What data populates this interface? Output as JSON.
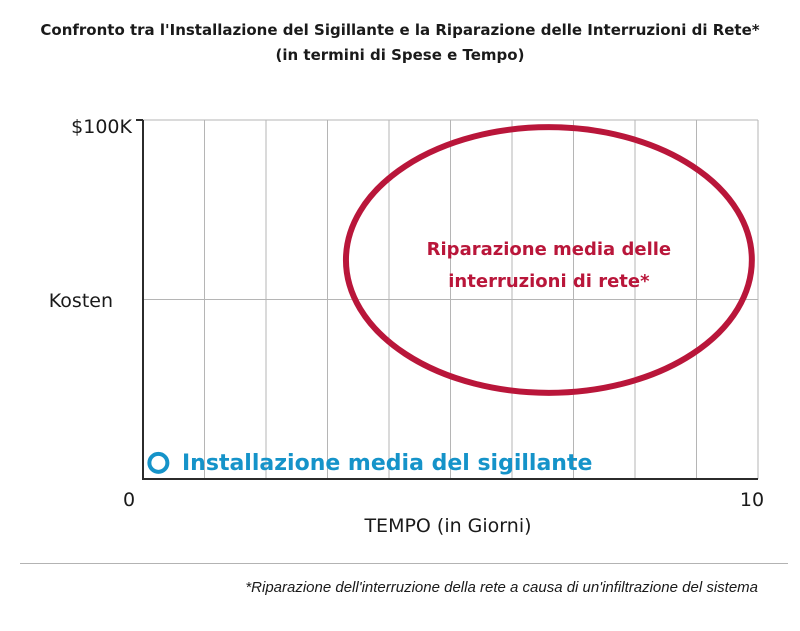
{
  "chart_data": {
    "type": "scatter",
    "title": "Confronto tra l'Installazione del Sigillante e la Riparazione delle Interruzioni di Rete*",
    "subtitle": "(in termini di Spese e Tempo)",
    "xlabel": "TEMPO (in Giorni)",
    "ylabel": "Kosten",
    "xlim": [
      0,
      10
    ],
    "ylim": [
      0,
      100
    ],
    "x_tick_labels": [
      "0",
      "10"
    ],
    "y_tick_labels": [
      "$100K",
      "Kosten"
    ],
    "grid": true,
    "annotations": [
      {
        "kind": "ellipse",
        "label_lines": [
          "Riparazione media delle",
          "interruzioni di rete*"
        ],
        "center": {
          "x": 6.6,
          "y": 61
        },
        "x_range": [
          3.3,
          9.9
        ],
        "y_range": [
          24,
          98
        ],
        "color": "#b9163a"
      },
      {
        "kind": "point",
        "label": "Installazione media del sigillante",
        "x": 0.25,
        "y": 4.5,
        "color": "#1593c9"
      }
    ],
    "footnote": "*Riparazione dell'interruzione della rete a causa di un'infiltrazione del sistema"
  }
}
